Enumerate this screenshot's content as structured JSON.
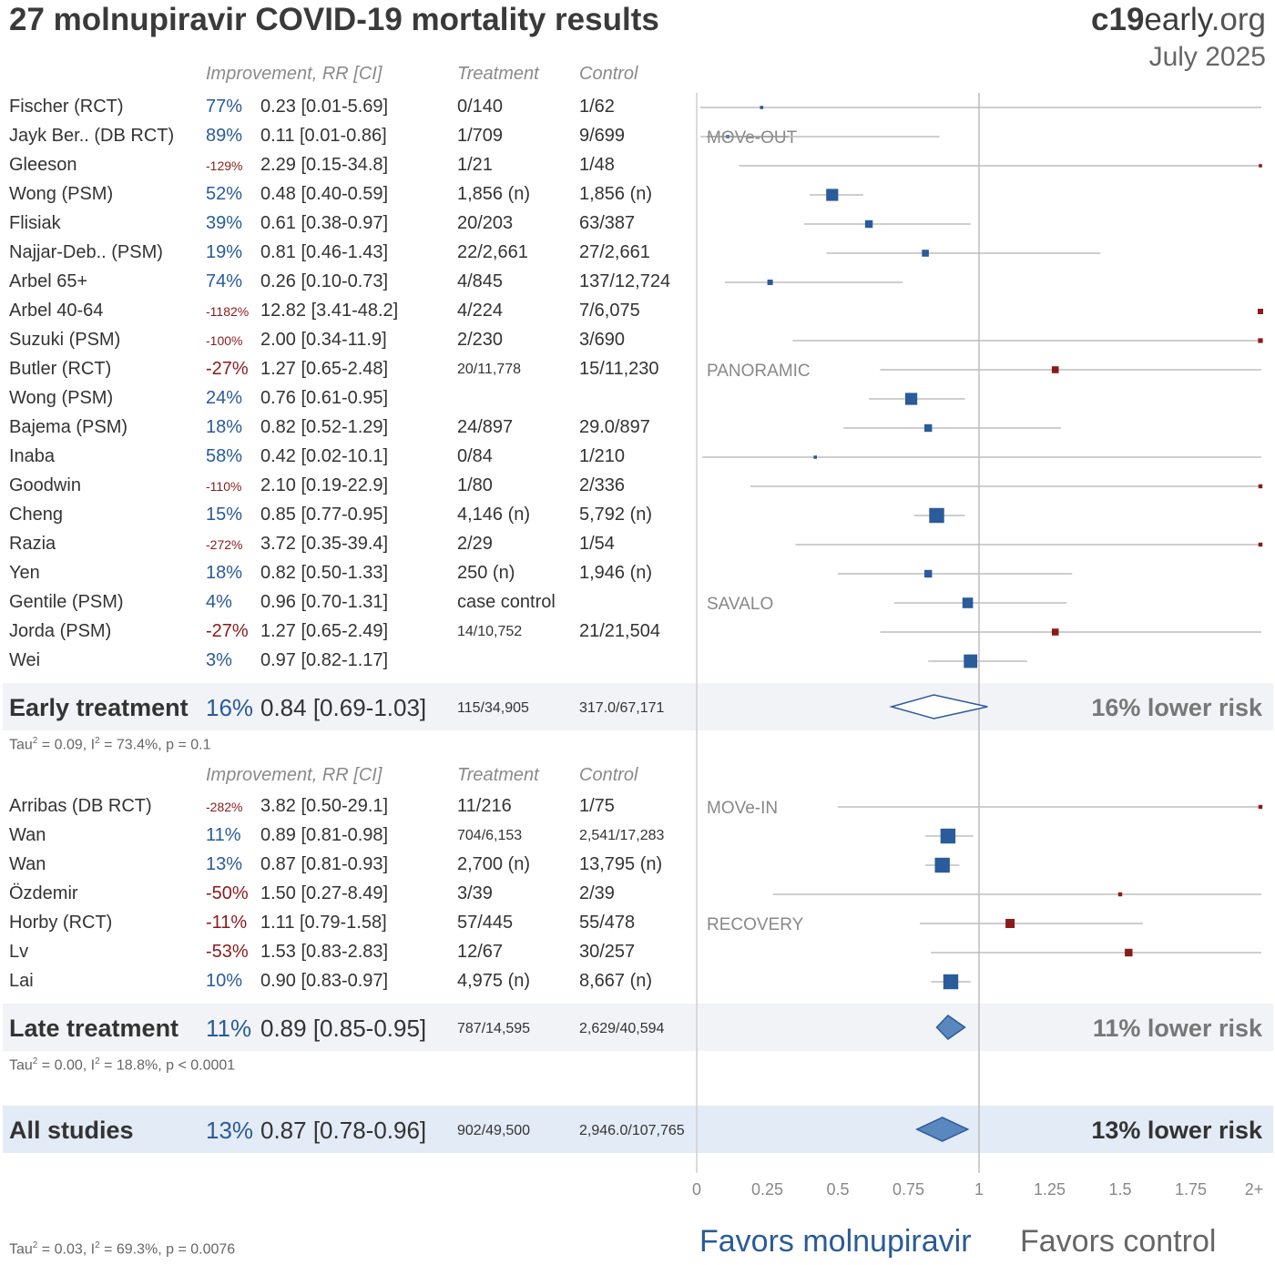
{
  "header": {
    "title": "27 molnupiravir COVID-19 mortality results",
    "brand_bold": "c19",
    "brand_rest": "early",
    "brand_org": ".org",
    "date": "July 2025"
  },
  "columns": {
    "improvement": "Improvement, RR [CI]",
    "treatment": "Treatment",
    "control": "Control"
  },
  "colors": {
    "favor": "#2a5b9a",
    "against": "#8b1a1a",
    "line": "#bdbdbd"
  },
  "chart_data": {
    "type": "forest",
    "x_axis": {
      "min": 0,
      "max": 2,
      "ticks": [
        "0",
        "0.25",
        "0.5",
        "0.75",
        "1",
        "1.25",
        "1.5",
        "1.75",
        "2+"
      ]
    },
    "groups": [
      {
        "name": "Early treatment",
        "studies": [
          {
            "name": "Fischer (RCT)",
            "improvement": "77%",
            "rr_text": "0.23 [0.01-5.69]",
            "treatment": "0/140",
            "control": "1/62",
            "rr": 0.23,
            "lo": 0.01,
            "hi": 5.69,
            "trial": "",
            "weight": 1
          },
          {
            "name": "Jayk Ber.. (DB RCT)",
            "improvement": "89%",
            "rr_text": "0.11 [0.01-0.86]",
            "treatment": "1/709",
            "control": "9/699",
            "rr": 0.11,
            "lo": 0.01,
            "hi": 0.86,
            "trial": "MOVe-OUT",
            "weight": 1
          },
          {
            "name": "Gleeson",
            "improvement": "-129%",
            "rr_text": "2.29 [0.15-34.8]",
            "treatment": "1/21",
            "control": "1/48",
            "rr": 2.29,
            "lo": 0.15,
            "hi": 34.8,
            "trial": "",
            "weight": 1
          },
          {
            "name": "Wong (PSM)",
            "improvement": "52%",
            "rr_text": "0.48 [0.40-0.59]",
            "treatment": "1,856 (n)",
            "control": "1,856 (n)",
            "rr": 0.48,
            "lo": 0.4,
            "hi": 0.59,
            "trial": "",
            "weight": 7
          },
          {
            "name": "Flisiak",
            "improvement": "39%",
            "rr_text": "0.61 [0.38-0.97]",
            "treatment": "20/203",
            "control": "63/387",
            "rr": 0.61,
            "lo": 0.38,
            "hi": 0.97,
            "trial": "",
            "weight": 4
          },
          {
            "name": "Najjar-Deb.. (PSM)",
            "improvement": "19%",
            "rr_text": "0.81 [0.46-1.43]",
            "treatment": "22/2,661",
            "control": "27/2,661",
            "rr": 0.81,
            "lo": 0.46,
            "hi": 1.43,
            "trial": "",
            "weight": 3.5
          },
          {
            "name": "Arbel 65+",
            "improvement": "74%",
            "rr_text": "0.26 [0.10-0.73]",
            "treatment": "4/845",
            "control": "137/12,724",
            "rr": 0.26,
            "lo": 0.1,
            "hi": 0.73,
            "trial": "",
            "weight": 2.5
          },
          {
            "name": "Arbel 40-64",
            "improvement": "-1182%",
            "rr_text": "12.82 [3.41-48.2]",
            "treatment": "4/224",
            "control": "7/6,075",
            "rr": 12.82,
            "lo": 3.41,
            "hi": 48.2,
            "trial": "",
            "weight": 2.5
          },
          {
            "name": "Suzuki (PSM)",
            "improvement": "-100%",
            "rr_text": "2.00 [0.34-11.9]",
            "treatment": "2/230",
            "control": "3/690",
            "rr": 2.0,
            "lo": 0.34,
            "hi": 11.9,
            "trial": "",
            "weight": 2
          },
          {
            "name": "Butler (RCT)",
            "improvement": "-27%",
            "rr_text": "1.27 [0.65-2.48]",
            "treatment": "20/11,778",
            "control": "15/11,230",
            "rr": 1.27,
            "lo": 0.65,
            "hi": 2.48,
            "trial": "PANORAMIC",
            "weight": 3.5
          },
          {
            "name": "Wong (PSM)",
            "improvement": "24%",
            "rr_text": "0.76 [0.61-0.95]",
            "treatment": "",
            "control": "",
            "rr": 0.76,
            "lo": 0.61,
            "hi": 0.95,
            "trial": "",
            "weight": 7
          },
          {
            "name": "Bajema (PSM)",
            "improvement": "18%",
            "rr_text": "0.82 [0.52-1.29]",
            "treatment": "24/897",
            "control": "29.0/897",
            "rr": 0.82,
            "lo": 0.52,
            "hi": 1.29,
            "trial": "",
            "weight": 4
          },
          {
            "name": "Inaba",
            "improvement": "58%",
            "rr_text": "0.42 [0.02-10.1]",
            "treatment": "0/84",
            "control": "1/210",
            "rr": 0.42,
            "lo": 0.02,
            "hi": 10.1,
            "trial": "",
            "weight": 1
          },
          {
            "name": "Goodwin",
            "improvement": "-110%",
            "rr_text": "2.10 [0.19-22.9]",
            "treatment": "1/80",
            "control": "2/336",
            "rr": 2.1,
            "lo": 0.19,
            "hi": 22.9,
            "trial": "",
            "weight": 1.5
          },
          {
            "name": "Cheng",
            "improvement": "15%",
            "rr_text": "0.85 [0.77-0.95]",
            "treatment": "4,146 (n)",
            "control": "5,792 (n)",
            "rr": 0.85,
            "lo": 0.77,
            "hi": 0.95,
            "trial": "",
            "weight": 9
          },
          {
            "name": "Razia",
            "improvement": "-272%",
            "rr_text": "3.72 [0.35-39.4]",
            "treatment": "2/29",
            "control": "1/54",
            "rr": 3.72,
            "lo": 0.35,
            "hi": 39.4,
            "trial": "",
            "weight": 1.5
          },
          {
            "name": "Yen",
            "improvement": "18%",
            "rr_text": "0.82 [0.50-1.33]",
            "treatment": "250 (n)",
            "control": "1,946 (n)",
            "rr": 0.82,
            "lo": 0.5,
            "hi": 1.33,
            "trial": "",
            "weight": 4
          },
          {
            "name": "Gentile (PSM)",
            "improvement": "4%",
            "rr_text": "0.96 [0.70-1.31]",
            "treatment": "case control",
            "control": "",
            "rr": 0.96,
            "lo": 0.7,
            "hi": 1.31,
            "trial": "SAVALO",
            "weight": 6
          },
          {
            "name": "Jorda (PSM)",
            "improvement": "-27%",
            "rr_text": "1.27 [0.65-2.49]",
            "treatment": "14/10,752",
            "control": "21/21,504",
            "rr": 1.27,
            "lo": 0.65,
            "hi": 2.49,
            "trial": "",
            "weight": 3.5
          },
          {
            "name": "Wei",
            "improvement": "3%",
            "rr_text": "0.97 [0.82-1.17]",
            "treatment": "",
            "control": "",
            "rr": 0.97,
            "lo": 0.82,
            "hi": 1.17,
            "trial": "",
            "weight": 8
          }
        ],
        "summary": {
          "label": "Early treatment",
          "improvement": "16%",
          "rr_text": "0.84 [0.69-1.03]",
          "treatment": "115/34,905",
          "control": "317.0/67,171",
          "rr": 0.84,
          "lo": 0.69,
          "hi": 1.03,
          "risk_text": "16% lower risk"
        },
        "stats": {
          "tau": "Tau",
          "i": ", I",
          "rest": " = 0.09, ",
          "rest2": " = 73.4%, p = 0.1"
        }
      },
      {
        "name": "Late treatment",
        "studies": [
          {
            "name": "Arribas (DB RCT)",
            "improvement": "-282%",
            "rr_text": "3.82 [0.50-29.1]",
            "treatment": "11/216",
            "control": "1/75",
            "rr": 3.82,
            "lo": 0.5,
            "hi": 29.1,
            "trial": "MOVe-IN",
            "weight": 1.5
          },
          {
            "name": "Wan",
            "improvement": "11%",
            "rr_text": "0.89 [0.81-0.98]",
            "treatment": "704/6,153",
            "control": "2,541/17,283",
            "rr": 0.89,
            "lo": 0.81,
            "hi": 0.98,
            "trial": "",
            "weight": 9
          },
          {
            "name": "Wan",
            "improvement": "13%",
            "rr_text": "0.87 [0.81-0.93]",
            "treatment": "2,700 (n)",
            "control": "13,795 (n)",
            "rr": 0.87,
            "lo": 0.81,
            "hi": 0.93,
            "trial": "",
            "weight": 9
          },
          {
            "name": "Özdemir",
            "improvement": "-50%",
            "rr_text": "1.50 [0.27-8.49]",
            "treatment": "3/39",
            "control": "2/39",
            "rr": 1.5,
            "lo": 0.27,
            "hi": 8.49,
            "trial": "",
            "weight": 1.5
          },
          {
            "name": "Horby (RCT)",
            "improvement": "-11%",
            "rr_text": "1.11 [0.79-1.58]",
            "treatment": "57/445",
            "control": "55/478",
            "rr": 1.11,
            "lo": 0.79,
            "hi": 1.58,
            "trial": "RECOVERY",
            "weight": 5
          },
          {
            "name": "Lv",
            "improvement": "-53%",
            "rr_text": "1.53 [0.83-2.83]",
            "treatment": "12/67",
            "control": "30/257",
            "rr": 1.53,
            "lo": 0.83,
            "hi": 2.83,
            "trial": "",
            "weight": 4
          },
          {
            "name": "Lai",
            "improvement": "10%",
            "rr_text": "0.90 [0.83-0.97]",
            "treatment": "4,975 (n)",
            "control": "8,667 (n)",
            "rr": 0.9,
            "lo": 0.83,
            "hi": 0.97,
            "trial": "",
            "weight": 9
          }
        ],
        "summary": {
          "label": "Late treatment",
          "improvement": "11%",
          "rr_text": "0.89 [0.85-0.95]",
          "treatment": "787/14,595",
          "control": "2,629/40,594",
          "rr": 0.89,
          "lo": 0.85,
          "hi": 0.95,
          "risk_text": "11% lower risk"
        },
        "stats": {
          "tau": "Tau",
          "i": ", I",
          "rest": " = 0.00, ",
          "rest2": " = 18.8%, p < 0.0001"
        }
      }
    ],
    "overall": {
      "label": "All studies",
      "improvement": "13%",
      "rr_text": "0.87 [0.78-0.96]",
      "treatment": "902/49,500",
      "control": "2,946.0/107,765",
      "rr": 0.87,
      "lo": 0.78,
      "hi": 0.96,
      "risk_text": "13% lower risk"
    },
    "overall_stats": {
      "tau": "Tau",
      "i": ", I",
      "rest": " = 0.03, ",
      "rest2": " = 69.3%, p = 0.0076"
    }
  },
  "favors": {
    "left": "Favors molnupiravir",
    "right": "Favors control"
  }
}
